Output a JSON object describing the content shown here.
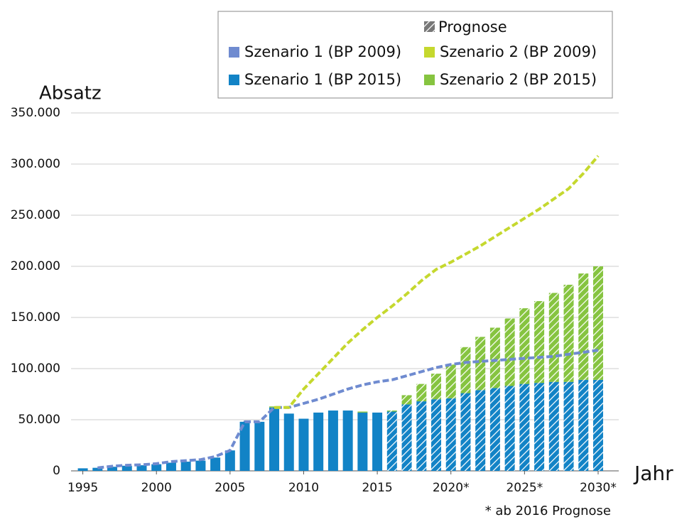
{
  "chart_data": {
    "type": "bar",
    "y_label": "Absatz",
    "x_label": "Jahr",
    "note": "* ab 2016 Prognose",
    "legend_forecast": "Prognose",
    "forecast_from": 2016,
    "x": [
      1995,
      1996,
      1997,
      1998,
      1999,
      2000,
      2001,
      2002,
      2003,
      2004,
      2005,
      2006,
      2007,
      2008,
      2009,
      2010,
      2011,
      2012,
      2013,
      2014,
      2015,
      2016,
      2017,
      2018,
      2019,
      2020,
      2021,
      2022,
      2023,
      2024,
      2025,
      2026,
      2027,
      2028,
      2029,
      2030
    ],
    "xlim": [
      1994.2,
      2031.4
    ],
    "xticks": [
      1995,
      2000,
      2005,
      2010,
      2015,
      {
        "value": 2020,
        "label": "2020*"
      },
      {
        "value": 2025,
        "label": "2025*"
      },
      {
        "value": 2030,
        "label": "2030*"
      }
    ],
    "ylim": [
      0,
      350000
    ],
    "yticks": [
      0,
      {
        "value": 50000,
        "label": "50.000"
      },
      {
        "value": 100000,
        "label": "100.000"
      },
      {
        "value": 150000,
        "label": "150.000"
      },
      {
        "value": 200000,
        "label": "200.000"
      },
      {
        "value": 250000,
        "label": "250.000"
      },
      {
        "value": 300000,
        "label": "300.000"
      },
      {
        "value": 350000,
        "label": "350.000"
      }
    ],
    "grid": true,
    "series": [
      {
        "name": "Szenario 1 (BP 2009)",
        "type": "line",
        "color": "#6f8bd0",
        "values": [
          null,
          3000,
          4500,
          5500,
          6000,
          7000,
          9000,
          10000,
          11000,
          14000,
          20000,
          48000,
          48000,
          62000,
          62000,
          66000,
          70000,
          75000,
          80000,
          84000,
          87000,
          89000,
          93000,
          97000,
          101000,
          104000,
          106000,
          107000,
          108000,
          109000,
          110000,
          111000,
          112000,
          114000,
          116000,
          118000
        ]
      },
      {
        "name": "Szenario 2 (BP 2009)",
        "type": "line",
        "color": "#c5d82e",
        "values": [
          null,
          null,
          null,
          null,
          null,
          null,
          null,
          null,
          null,
          null,
          null,
          null,
          null,
          62000,
          62000,
          80000,
          95000,
          110000,
          125000,
          138000,
          150000,
          161000,
          173000,
          186000,
          197000,
          204000,
          212000,
          220000,
          229000,
          238000,
          247000,
          256000,
          266000,
          276000,
          291000,
          308000
        ]
      },
      {
        "name": "Szenario 1 (BP 2015)",
        "type": "bar",
        "color": "#1283c6",
        "values": [
          2500,
          3000,
          4000,
          5000,
          5500,
          6500,
          8000,
          9000,
          10000,
          13000,
          20000,
          48000,
          48000,
          62000,
          56000,
          51000,
          57000,
          59000,
          59000,
          57000,
          57000,
          58000,
          65000,
          68000,
          70000,
          71000,
          76000,
          79000,
          81000,
          83000,
          85000,
          86000,
          87000,
          87000,
          89000,
          89000
        ]
      },
      {
        "name": "Szenario 2 (BP 2015)",
        "type": "bar",
        "color": "#86c440",
        "values": [
          0,
          0,
          0,
          0,
          0,
          0,
          0,
          0,
          0,
          0,
          0,
          0,
          0,
          1000,
          0,
          0,
          0,
          0,
          0,
          1000,
          0,
          1000,
          9000,
          17000,
          25000,
          33000,
          45000,
          52000,
          59000,
          66000,
          74000,
          80000,
          87000,
          95000,
          104000,
          111000
        ]
      }
    ]
  }
}
